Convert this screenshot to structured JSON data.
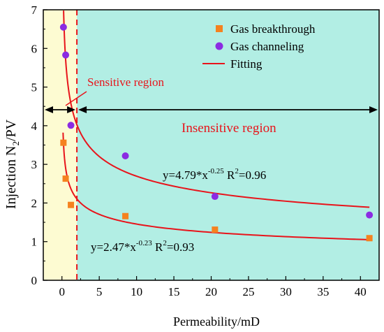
{
  "chart_data": {
    "type": "scatter",
    "xlabel": "Permeability/mD",
    "ylabel_main": "Injection N",
    "ylabel_sub": "2",
    "ylabel_tail": "/PV",
    "xlim": [
      -2.5,
      42.5
    ],
    "ylim": [
      0,
      7
    ],
    "xticks": [
      0,
      5,
      10,
      15,
      20,
      25,
      30,
      35,
      40
    ],
    "yticks": [
      0,
      1,
      2,
      3,
      4,
      5,
      6,
      7
    ],
    "grid": false,
    "legend_position": "top-right",
    "legend": [
      {
        "label": "Gas breakthrough",
        "kind": "square"
      },
      {
        "label": "Gas channeling",
        "kind": "circle"
      },
      {
        "label": "Fitting",
        "kind": "line"
      }
    ],
    "colors": {
      "breakthrough": "#f5821f",
      "channeling": "#8b2be2",
      "fit": "#e8141b",
      "sensitive_bg": "#fdfbd2",
      "insensitive_bg": "#b2eee4",
      "axis": "#000000"
    },
    "series": [
      {
        "name": "Gas breakthrough",
        "marker": "square",
        "x": [
          0.2,
          0.5,
          1.2,
          8.5,
          20.5,
          41.2
        ],
        "y": [
          3.56,
          2.63,
          1.95,
          1.66,
          1.31,
          1.09
        ]
      },
      {
        "name": "Gas channeling",
        "marker": "circle",
        "x": [
          0.2,
          0.5,
          1.2,
          8.5,
          20.5,
          41.2
        ],
        "y": [
          6.55,
          5.83,
          4.01,
          3.22,
          2.17,
          1.69
        ]
      }
    ],
    "fits": [
      {
        "name": "Fitting",
        "a": 4.79,
        "b": -0.25,
        "x_start": 0.02,
        "x_end": 41.2
      },
      {
        "name": "Fitting",
        "a": 2.47,
        "b": -0.23,
        "x_start": 0.15,
        "x_end": 41.2
      }
    ],
    "divider_x": 2.0,
    "annotations": {
      "sensitive": "Sensitive region",
      "insensitive": "Insensitive region",
      "eq_top": {
        "pre": "y=4.79*x",
        "exp": "-0.25",
        "mid": " R",
        "exp2": "2",
        "post": "=0.96"
      },
      "eq_bottom": {
        "pre": "y=2.47*x",
        "exp": "-0.23",
        "mid": " R",
        "exp2": "2",
        "post": "=0.93"
      }
    }
  }
}
